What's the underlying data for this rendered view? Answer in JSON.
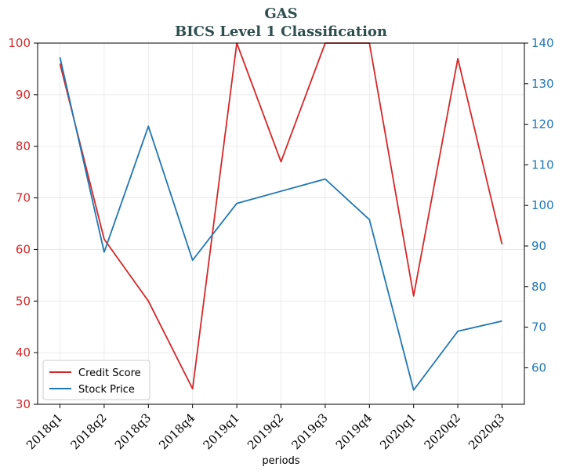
{
  "chart_data": {
    "type": "line",
    "title": "GAS",
    "subtitle": "BICS Level 1 Classification",
    "xlabel": "periods",
    "categories": [
      "2018q1",
      "2018q2",
      "2018q3",
      "2018q4",
      "2019q1",
      "2019q2",
      "2019q3",
      "2019q4",
      "2020q1",
      "2020q2",
      "2020q3"
    ],
    "series": [
      {
        "name": "Credit Score",
        "axis": "left",
        "color": "#d62728",
        "values": [
          96,
          62,
          50,
          33,
          100,
          77,
          100,
          100,
          51,
          97,
          61
        ]
      },
      {
        "name": "Stock Price",
        "axis": "right",
        "color": "#1f77b4",
        "values": [
          136.5,
          88.5,
          119.5,
          86.5,
          100.5,
          103.5,
          106.5,
          96.5,
          54.5,
          69,
          71.5
        ]
      }
    ],
    "ylim_left": [
      30,
      100
    ],
    "yticks_left": [
      30,
      40,
      50,
      60,
      70,
      80,
      90,
      100
    ],
    "ylim_right": [
      51,
      140
    ],
    "yticks_right": [
      60,
      70,
      80,
      90,
      100,
      110,
      120,
      130,
      140
    ],
    "grid": true,
    "legend_position": "lower-left"
  }
}
